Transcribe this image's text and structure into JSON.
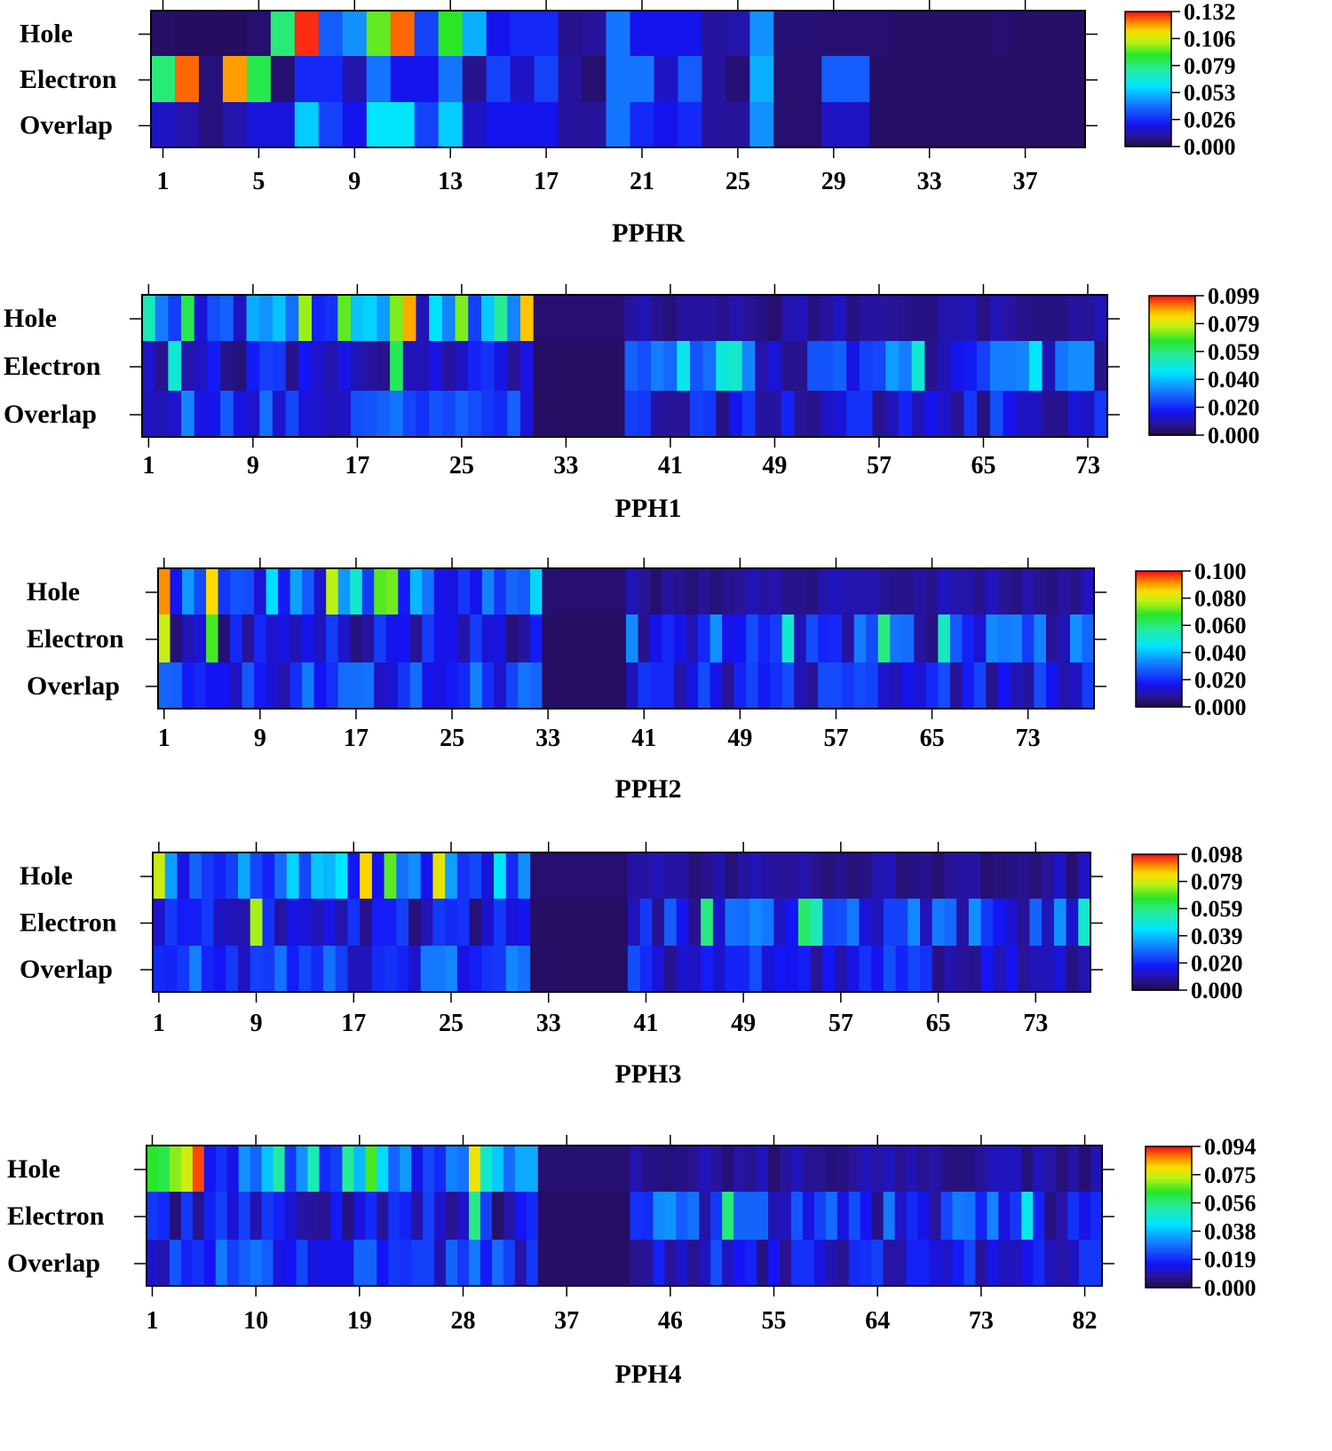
{
  "chart_data": [
    {
      "type": "heatmap",
      "title": "PPHR",
      "rows": [
        "Hole",
        "Electron",
        "Overlap"
      ],
      "x_ticks": [
        "1",
        "5",
        "9",
        "13",
        "17",
        "21",
        "25",
        "29",
        "33",
        "37"
      ],
      "n_cols": 39,
      "colorbar_ticks": [
        "0.132",
        "0.106",
        "0.079",
        "0.053",
        "0.026",
        "0.000"
      ],
      "vmax": 0.132,
      "values": [
        [
          0.003,
          0.002,
          0.002,
          0.002,
          0.004,
          0.08,
          0.13,
          0.035,
          0.045,
          0.095,
          0.125,
          0.03,
          0.09,
          0.05,
          0.02,
          0.025,
          0.025,
          0.008,
          0.01,
          0.04,
          0.02,
          0.02,
          0.02,
          0.01,
          0.012,
          0.045,
          0.005,
          0.005,
          0.004,
          0.004,
          0.004,
          0.003,
          0.003,
          0.003,
          0.003,
          0.004,
          0.003,
          0.003,
          0.003
        ],
        [
          0.08,
          0.125,
          0.006,
          0.12,
          0.085,
          0.004,
          0.025,
          0.025,
          0.012,
          0.04,
          0.02,
          0.02,
          0.04,
          0.008,
          0.03,
          0.015,
          0.03,
          0.01,
          0.004,
          0.04,
          0.04,
          0.015,
          0.035,
          0.01,
          0.005,
          0.05,
          0.004,
          0.004,
          0.035,
          0.035,
          0.003,
          0.003,
          0.003,
          0.003,
          0.003,
          0.003,
          0.003,
          0.003,
          0.003
        ],
        [
          0.015,
          0.012,
          0.006,
          0.012,
          0.018,
          0.018,
          0.055,
          0.03,
          0.02,
          0.06,
          0.06,
          0.03,
          0.055,
          0.015,
          0.02,
          0.02,
          0.02,
          0.01,
          0.01,
          0.04,
          0.025,
          0.02,
          0.025,
          0.01,
          0.01,
          0.045,
          0.004,
          0.004,
          0.015,
          0.015,
          0.003,
          0.003,
          0.003,
          0.003,
          0.003,
          0.003,
          0.003,
          0.003,
          0.003
        ]
      ]
    },
    {
      "type": "heatmap",
      "title": "PPH1",
      "rows": [
        "Hole",
        "Electron",
        "Overlap"
      ],
      "x_ticks": [
        "1",
        "9",
        "17",
        "25",
        "33",
        "41",
        "49",
        "57",
        "65",
        "73"
      ],
      "n_cols": 74,
      "colorbar_ticks": [
        "0.099",
        "0.079",
        "0.059",
        "0.040",
        "0.020",
        "0.000"
      ],
      "vmax": 0.099
    },
    {
      "type": "heatmap",
      "title": "PPH2",
      "rows": [
        "Hole",
        "Electron",
        "Overlap"
      ],
      "x_ticks": [
        "1",
        "9",
        "17",
        "25",
        "33",
        "41",
        "49",
        "57",
        "65",
        "73"
      ],
      "n_cols": 78,
      "colorbar_ticks": [
        "0.100",
        "0.080",
        "0.060",
        "0.040",
        "0.020",
        "0.000"
      ],
      "vmax": 0.1
    },
    {
      "type": "heatmap",
      "title": "PPH3",
      "rows": [
        "Hole",
        "Electron",
        "Overlap"
      ],
      "x_ticks": [
        "1",
        "9",
        "17",
        "25",
        "33",
        "41",
        "49",
        "57",
        "65",
        "73"
      ],
      "n_cols": 77,
      "colorbar_ticks": [
        "0.098",
        "0.079",
        "0.059",
        "0.039",
        "0.020",
        "0.000"
      ],
      "vmax": 0.098
    },
    {
      "type": "heatmap",
      "title": "PPH4",
      "rows": [
        "Hole",
        "Electron",
        "Overlap"
      ],
      "x_ticks": [
        "1",
        "10",
        "19",
        "28",
        "37",
        "46",
        "55",
        "64",
        "73",
        "82"
      ],
      "n_cols": 83,
      "colorbar_ticks": [
        "0.094",
        "0.075",
        "0.056",
        "0.038",
        "0.019",
        "0.000"
      ],
      "vmax": 0.094
    }
  ]
}
